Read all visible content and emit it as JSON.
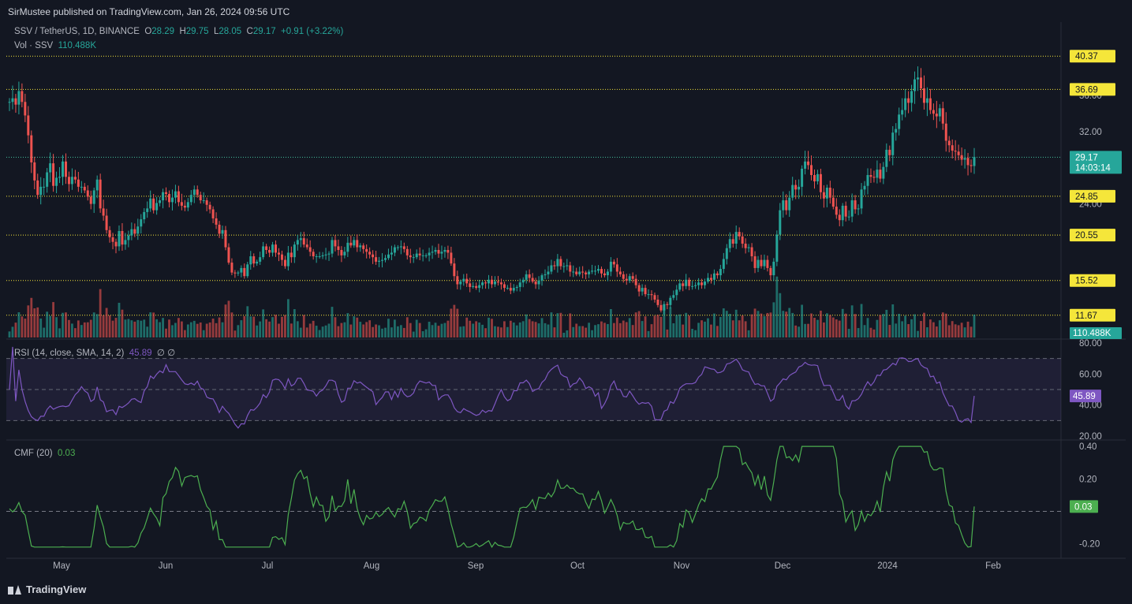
{
  "header": {
    "published": "SirMustee published on TradingView.com, Jan 26, 2024 09:56 UTC"
  },
  "legend": {
    "symbol": "SSV / TetherUS, 1D, BINANCE",
    "o_label": "O",
    "o": "28.29",
    "h_label": "H",
    "h": "29.75",
    "l_label": "L",
    "l": "28.05",
    "c_label": "C",
    "c": "29.17",
    "change": "+0.91 (+3.22%)",
    "vol_label": "Vol · SSV",
    "vol": "110.488K",
    "rsi_label": "RSI (14, close, SMA, 14, 2)",
    "rsi_value": "45.89",
    "rsi_extra": "∅ ∅",
    "cmf_label": "CMF (20)",
    "cmf_value": "0.03"
  },
  "brand": {
    "name": "TradingView"
  },
  "colors": {
    "up": "#26a69a",
    "down": "#ef5350",
    "rsi": "#7e57c2",
    "cmf": "#4caf50",
    "level": "#f5e63a",
    "bg": "#131722",
    "grid": "#2a2e39"
  },
  "chart_data": [
    {
      "type": "candlestick",
      "title": "SSV / TetherUS, 1D, BINANCE",
      "x_labels": [
        "May",
        "Jun",
        "Jul",
        "Aug",
        "Sep",
        "Oct",
        "Nov",
        "Dec",
        "2024",
        "Feb"
      ],
      "y_ticks": [
        "24.00",
        "28.00",
        "32.00",
        "36.00"
      ],
      "ylim": [
        12,
        41
      ],
      "levels": [
        {
          "value": 40.37,
          "label": "40.37"
        },
        {
          "value": 36.69,
          "label": "36.69"
        },
        {
          "value": 29.16,
          "label": "29.16"
        },
        {
          "value": 24.85,
          "label": "24.85"
        },
        {
          "value": 20.55,
          "label": "20.55"
        },
        {
          "value": 15.52,
          "label": "15.52"
        },
        {
          "value": 11.67,
          "label": "11.67"
        }
      ],
      "last_price": {
        "value": 29.17,
        "label": "29.17",
        "countdown": "14:03:14"
      },
      "closes": [
        35.3,
        35.7,
        35.0,
        36.5,
        35.3,
        33.8,
        31.6,
        28.6,
        26.6,
        25.0,
        25.9,
        25.9,
        27.5,
        28.5,
        26.0,
        26.9,
        27.0,
        28.7,
        27.0,
        26.2,
        27.0,
        26.7,
        25.9,
        25.9,
        25.5,
        24.8,
        24.0,
        25.5,
        26.7,
        23.5,
        22.7,
        21.1,
        20.3,
        19.8,
        19.3,
        21.0,
        19.5,
        20.0,
        20.5,
        21.2,
        20.7,
        21.5,
        22.3,
        23.1,
        23.5,
        24.6,
        23.3,
        24.1,
        24.4,
        25.3,
        25.1,
        24.2,
        24.7,
        25.4,
        24.2,
        23.8,
        23.6,
        24.2,
        25.0,
        25.6,
        25.0,
        24.4,
        24.4,
        23.9,
        23.4,
        22.4,
        21.7,
        20.7,
        21.1,
        19.2,
        17.5,
        16.4,
        16.3,
        16.4,
        16.9,
        16.0,
        17.3,
        18.2,
        17.4,
        17.6,
        18.1,
        19.3,
        18.9,
        18.6,
        19.5,
        18.6,
        18.4,
        17.8,
        17.1,
        18.6,
        18.1,
        19.5,
        20.0,
        20.2,
        19.5,
        19.2,
        18.7,
        18.2,
        18.2,
        18.2,
        18.3,
        18.4,
        18.5,
        20.0,
        19.3,
        18.9,
        18.3,
        18.7,
        19.7,
        19.4,
        20.0,
        19.2,
        19.4,
        19.0,
        18.7,
        18.4,
        18.1,
        17.6,
        17.7,
        17.8,
        18.0,
        18.4,
        18.6,
        19.2,
        19.2,
        19.3,
        19.0,
        18.3,
        18.1,
        18.1,
        18.5,
        18.3,
        18.3,
        18.3,
        18.6,
        18.7,
        18.9,
        18.5,
        18.7,
        18.9,
        18.6,
        17.4,
        16.0,
        15.1,
        15.4,
        15.7,
        15.2,
        14.8,
        14.9,
        14.7,
        15.0,
        15.3,
        15.2,
        15.6,
        15.1,
        15.4,
        15.3,
        15.1,
        14.7,
        14.7,
        14.4,
        14.7,
        14.8,
        15.3,
        15.6,
        16.2,
        15.8,
        15.4,
        15.1,
        15.5,
        16.1,
        16.2,
        16.5,
        17.2,
        17.1,
        17.9,
        17.1,
        17.1,
        17.2,
        16.5,
        16.5,
        16.2,
        16.5,
        16.4,
        16.2,
        16.5,
        16.6,
        16.6,
        16.8,
        16.3,
        16.1,
        16.5,
        17.6,
        17.3,
        16.5,
        16.2,
        15.7,
        15.5,
        16.0,
        15.7,
        15.0,
        14.3,
        14.7,
        14.0,
        14.0,
        13.9,
        13.4,
        12.8,
        12.2,
        12.9,
        12.8,
        13.6,
        13.9,
        14.5,
        15.2,
        14.9,
        15.6,
        14.9,
        14.9,
        15.0,
        15.3,
        15.0,
        15.4,
        15.8,
        15.6,
        16.3,
        16.1,
        16.8,
        17.9,
        19.1,
        20.1,
        19.6,
        20.9,
        20.4,
        19.6,
        19.1,
        19.2,
        18.2,
        16.9,
        17.8,
        17.1,
        17.8,
        16.9,
        16.1,
        17.6,
        20.6,
        23.3,
        24.4,
        23.3,
        24.7,
        26.1,
        25.6,
        25.9,
        27.9,
        28.7,
        28.3,
        27.2,
        26.5,
        27.3,
        25.3,
        24.6,
        25.8,
        24.7,
        23.7,
        22.8,
        22.2,
        23.8,
        22.6,
        22.6,
        24.4,
        23.4,
        23.5,
        25.6,
        26.0,
        27.2,
        27.0,
        26.9,
        27.8,
        26.8,
        28.1,
        30.0,
        29.4,
        31.9,
        32.3,
        33.9,
        34.4,
        35.7,
        35.2,
        36.5,
        37.8,
        38.0,
        36.8,
        35.2,
        35.7,
        34.4,
        34.0,
        33.7,
        34.6,
        32.9,
        31.0,
        30.5,
        29.9,
        29.8,
        29.4,
        28.9,
        29.1,
        28.3,
        28.2,
        29.2
      ],
      "volume_axis_label": "110.488K"
    },
    {
      "type": "line",
      "title": "RSI (14, close, SMA, 14, 2)",
      "y_ticks": [
        "80.00",
        "60.00",
        "40.00",
        "20.00"
      ],
      "ylim": [
        20,
        80
      ],
      "bands": [
        30,
        50,
        70
      ],
      "last": {
        "value": 45.89,
        "label": "45.89"
      }
    },
    {
      "type": "line",
      "title": "CMF (20)",
      "y_ticks": [
        "0.40",
        "0.20",
        "-0.20"
      ],
      "ylim": [
        -0.25,
        0.42
      ],
      "zero_line": 0,
      "last": {
        "value": 0.03,
        "label": "0.03"
      }
    }
  ]
}
